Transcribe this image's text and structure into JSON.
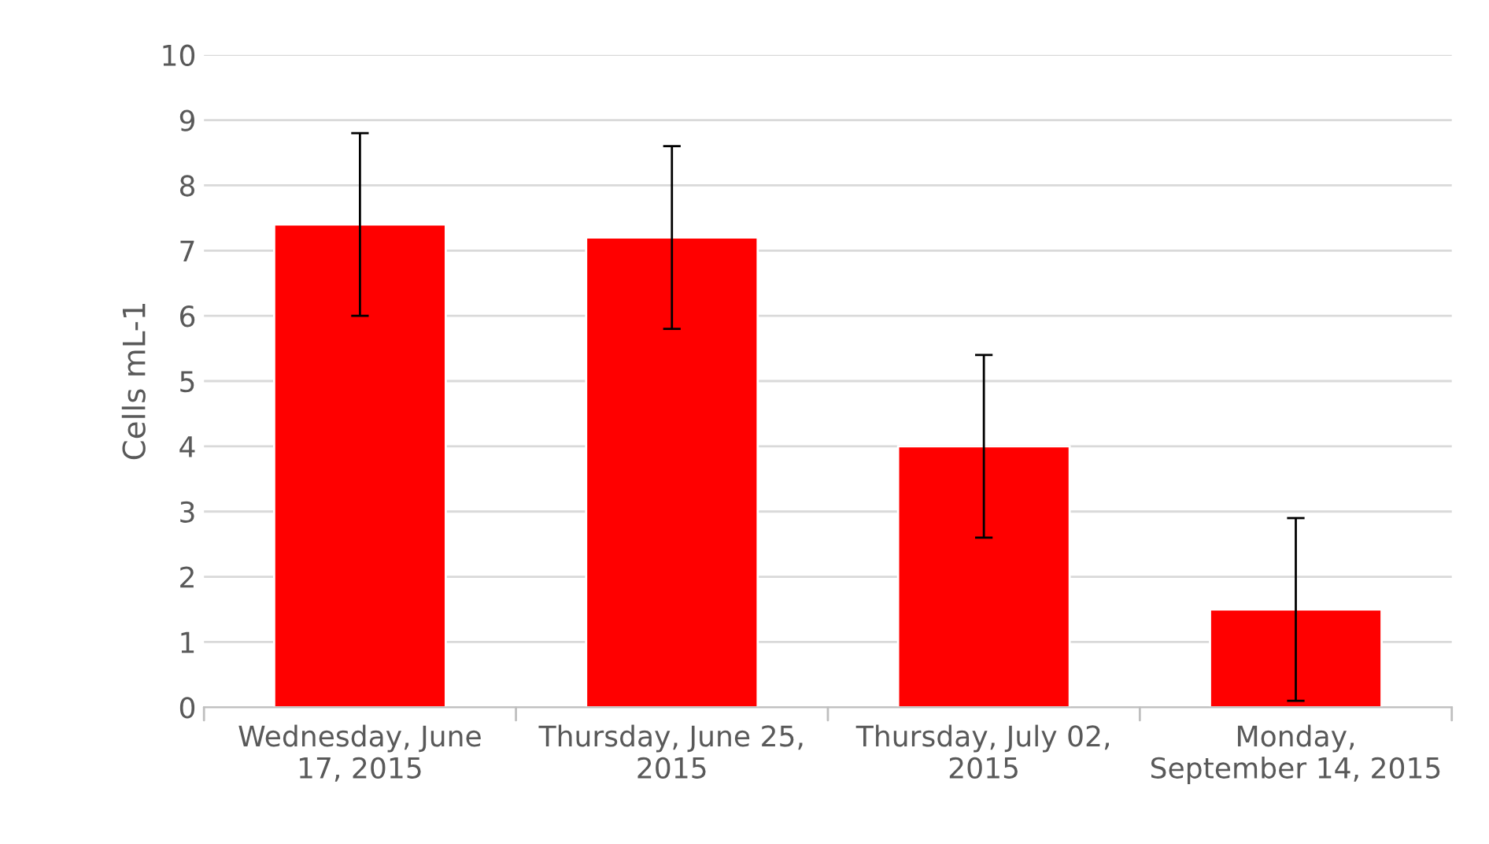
{
  "chart_data": {
    "type": "bar",
    "ylabel": "Cells mL-1",
    "categories": [
      "Wednesday, June\n17, 2015",
      "Thursday, June 25,\n2015",
      "Thursday, July 02,\n2015",
      "Monday,\nSeptember 14, 2015"
    ],
    "values": [
      7.4,
      7.2,
      4.0,
      1.5
    ],
    "errors": [
      1.4,
      1.4,
      1.4,
      1.4
    ],
    "color": "#ff0000",
    "ylim": [
      0,
      10
    ],
    "yticks": [
      0,
      1,
      2,
      3,
      4,
      5,
      6,
      7,
      8,
      9,
      10
    ],
    "grid": "y"
  }
}
